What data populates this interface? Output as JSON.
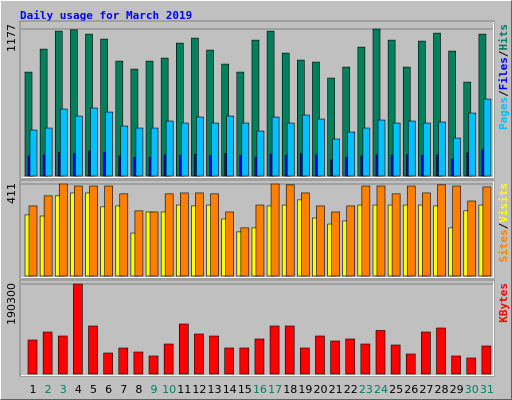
{
  "chart_data": [
    {
      "type": "bar",
      "title": "Daily usage for March 2019",
      "ylim": [
        0,
        1177
      ],
      "yticks": [
        1177
      ],
      "grid": true,
      "series": [
        {
          "name": "Hits",
          "color": "#00805c",
          "values": [
            832,
            1016,
            1160,
            1170,
            1136,
            1096,
            920,
            856,
            920,
            944,
            1064,
            1104,
            1008,
            896,
            832,
            1088,
            1160,
            984,
            928,
            912,
            784,
            872,
            1032,
            1177,
            1088,
            872,
            1080,
            1144,
            1000,
            752,
            1136
          ]
        },
        {
          "name": "Files",
          "color": "#0000ff",
          "values": [
            160,
            170,
            190,
            180,
            200,
            190,
            160,
            150,
            150,
            170,
            165,
            175,
            165,
            180,
            165,
            150,
            175,
            165,
            180,
            170,
            130,
            150,
            160,
            170,
            165,
            170,
            165,
            168,
            135,
            185,
            210
          ]
        },
        {
          "name": "Pages",
          "color": "#00c0ff",
          "values": [
            368,
            384,
            536,
            480,
            544,
            512,
            400,
            384,
            384,
            440,
            424,
            472,
            424,
            480,
            424,
            360,
            472,
            424,
            488,
            456,
            296,
            352,
            384,
            448,
            424,
            440,
            424,
            432,
            304,
            504,
            616
          ]
        }
      ]
    },
    {
      "type": "bar",
      "ylim": [
        0,
        411
      ],
      "yticks": [
        411
      ],
      "grid": true,
      "series": [
        {
          "name": "Visits",
          "color": "#ffff00",
          "values": [
            273,
            268,
            358,
            371,
            371,
            309,
            313,
            192,
            286,
            286,
            317,
            313,
            317,
            255,
            197,
            215,
            313,
            317,
            340,
            259,
            232,
            246,
            317,
            317,
            317,
            317,
            317,
            313,
            215,
            291,
            317
          ]
        },
        {
          "name": "Sites",
          "color": "#ff8000",
          "values": [
            313,
            358,
            411,
            402,
            402,
            402,
            367,
            291,
            286,
            367,
            371,
            371,
            367,
            286,
            215,
            317,
            411,
            407,
            371,
            313,
            286,
            313,
            402,
            402,
            367,
            402,
            371,
            407,
            402,
            335,
            398
          ]
        }
      ]
    },
    {
      "type": "bar",
      "ylim": [
        0,
        190300
      ],
      "yticks": [
        190300
      ],
      "grid": true,
      "categories": [
        "1",
        "2",
        "3",
        "4",
        "5",
        "6",
        "7",
        "8",
        "9",
        "10",
        "11",
        "12",
        "13",
        "14",
        "15",
        "16",
        "17",
        "18",
        "19",
        "20",
        "21",
        "22",
        "23",
        "24",
        "25",
        "26",
        "27",
        "28",
        "29",
        "30",
        "31"
      ],
      "category_colors": [
        "#000000",
        "#00805c",
        "#00805c",
        "#000000",
        "#000000",
        "#000000",
        "#000000",
        "#000000",
        "#00805c",
        "#00805c",
        "#000000",
        "#000000",
        "#000000",
        "#000000",
        "#000000",
        "#00805c",
        "#00805c",
        "#000000",
        "#000000",
        "#000000",
        "#000000",
        "#000000",
        "#00805c",
        "#00805c",
        "#000000",
        "#000000",
        "#000000",
        "#000000",
        "#000000",
        "#00805c",
        "#00805c"
      ],
      "series": [
        {
          "name": "KBytes",
          "color": "#ff0000",
          "values": [
            71876,
            88788,
            80332,
            190300,
            101472,
            44394,
            54964,
            46508,
            38052,
            63420,
            105700,
            84560,
            80332,
            54964,
            54964,
            73990,
            101472,
            101472,
            54964,
            80332,
            69762,
            73990,
            63420,
            92016,
            61306,
            42280,
            88788,
            97244,
            38052,
            33824,
            59192
          ]
        }
      ]
    }
  ],
  "legend_separator": "/"
}
